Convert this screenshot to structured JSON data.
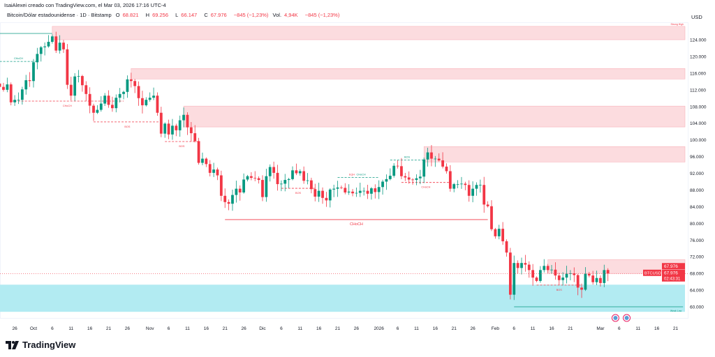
{
  "header": {
    "credit": "IsaiAlexei creado con TradingView.com, el Mar 03, 2026 17:16 UTC-4",
    "symbol_desc": "Bitcoin/Dólar estadounidense · 1D · Bitstamp",
    "open_label": "O",
    "open": "68.821",
    "high_label": "H",
    "high": "69.256",
    "low_label": "L",
    "low": "66.147",
    "close_label": "C",
    "close": "67.976",
    "change": "−845 (−1,23%)",
    "vol_label": "Vol.",
    "vol": "4,94K",
    "vol_change": "−845 (−1,23%)"
  },
  "axis": {
    "currency": "USD"
  },
  "price_tags": {
    "last_price": "67.976",
    "symbol": "BTCUSD",
    "price": "67.976",
    "countdown": "02:43:31"
  },
  "logo": {
    "text": "TradingView"
  },
  "colors": {
    "up": "#089981",
    "down": "#f23645",
    "supply_zone": "#fcdcdf",
    "demand_zone": "#b2ebf2",
    "structure_up": "#089981",
    "structure_down": "#f23645"
  },
  "chart_data": {
    "type": "candlestick",
    "title": "Bitcoin/Dólar estadounidense · 1D · Bitstamp",
    "first_date": "2025-09-22",
    "last_candle": {
      "o": 68821,
      "h": 69256,
      "l": 66147,
      "c": 67976
    },
    "closes_k": [
      112.7,
      112.0,
      113.3,
      109.0,
      109.6,
      109.6,
      112.1,
      114.3,
      114.1,
      118.6,
      120.6,
      122.2,
      122.4,
      123.5,
      124.8,
      121.4,
      123.3,
      121.7,
      113.2,
      110.6,
      115.2,
      115.3,
      113.1,
      111.0,
      108.2,
      106.5,
      107.2,
      108.7,
      110.6,
      108.4,
      107.6,
      110.1,
      111.0,
      111.5,
      114.5,
      114.1,
      112.9,
      110.0,
      108.3,
      109.6,
      110.1,
      110.6,
      106.5,
      101.5,
      103.9,
      101.3,
      103.4,
      102.3,
      104.7,
      106.0,
      103.0,
      101.6,
      99.7,
      94.5,
      95.5,
      94.2,
      92.1,
      92.9,
      91.5,
      86.6,
      85.1,
      84.7,
      86.8,
      88.3,
      87.4,
      90.5,
      91.3,
      90.9,
      90.8,
      90.4,
      86.3,
      91.3,
      93.5,
      92.1,
      89.4,
      89.5,
      90.4,
      90.6,
      92.7,
      92.0,
      92.5,
      90.2,
      90.3,
      88.2,
      86.4,
      87.8,
      86.1,
      85.5,
      88.1,
      88.3,
      88.6,
      88.5,
      87.4,
      87.6,
      87.2,
      87.3,
      87.8,
      87.8,
      87.1,
      88.4,
      87.5,
      88.7,
      90.0,
      90.6,
      91.4,
      93.8,
      93.7,
      91.3,
      91.0,
      90.5,
      90.4,
      90.8,
      91.2,
      95.3,
      97.0,
      95.5,
      95.5,
      95.1,
      93.6,
      92.5,
      88.3,
      89.4,
      89.4,
      89.5,
      89.2,
      86.6,
      88.3,
      89.2,
      89.2,
      84.5,
      84.1,
      78.6,
      76.9,
      78.7,
      75.7,
      73.0,
      62.9,
      70.5,
      69.3,
      70.5,
      70.1,
      68.8,
      67.0,
      66.2,
      68.8,
      69.8,
      68.8,
      68.9,
      67.5,
      66.4,
      67.0,
      67.9,
      68.0,
      67.6,
      64.6,
      64.1,
      67.9,
      67.5,
      65.9,
      66.9,
      65.7,
      68.8,
      67.976
    ],
    "ylim": [
      56000,
      128000
    ],
    "y_ticks": [
      "60.000",
      "64.000",
      "68.000",
      "72.000",
      "76.000",
      "80.000",
      "84.000",
      "88.000",
      "92.000",
      "96.000",
      "100.000",
      "104.000",
      "108.000",
      "112.000",
      "116.000",
      "120.000",
      "124.000"
    ],
    "y_tick_values": [
      60000,
      64000,
      68000,
      72000,
      76000,
      80000,
      84000,
      88000,
      92000,
      96000,
      100000,
      104000,
      108000,
      112000,
      116000,
      120000,
      124000
    ],
    "x_ticks": [
      {
        "label": "26",
        "day": 4
      },
      {
        "label": "Oct",
        "day": 9
      },
      {
        "label": "6",
        "day": 14
      },
      {
        "label": "11",
        "day": 19
      },
      {
        "label": "16",
        "day": 24
      },
      {
        "label": "21",
        "day": 29
      },
      {
        "label": "26",
        "day": 34
      },
      {
        "label": "Nov",
        "day": 40
      },
      {
        "label": "6",
        "day": 45
      },
      {
        "label": "11",
        "day": 50
      },
      {
        "label": "16",
        "day": 55
      },
      {
        "label": "21",
        "day": 60
      },
      {
        "label": "26",
        "day": 65
      },
      {
        "label": "Dic",
        "day": 70
      },
      {
        "label": "6",
        "day": 75
      },
      {
        "label": "11",
        "day": 80
      },
      {
        "label": "16",
        "day": 85
      },
      {
        "label": "21",
        "day": 90
      },
      {
        "label": "26",
        "day": 95
      },
      {
        "label": "2026",
        "day": 101
      },
      {
        "label": "6",
        "day": 106
      },
      {
        "label": "11",
        "day": 111
      },
      {
        "label": "16",
        "day": 116
      },
      {
        "label": "21",
        "day": 121
      },
      {
        "label": "26",
        "day": 126
      },
      {
        "label": "Feb",
        "day": 132
      },
      {
        "label": "6",
        "day": 137
      },
      {
        "label": "11",
        "day": 142
      },
      {
        "label": "16",
        "day": 147
      },
      {
        "label": "21",
        "day": 152
      },
      {
        "label": "Mar",
        "day": 160
      },
      {
        "label": "6",
        "day": 165
      },
      {
        "label": "11",
        "day": 170
      },
      {
        "label": "16",
        "day": 175
      },
      {
        "label": "21",
        "day": 180
      }
    ],
    "zones": [
      {
        "kind": "supply",
        "from_day": 14,
        "top": 127200,
        "bottom": 124000,
        "label": "Strong High"
      },
      {
        "kind": "supply",
        "from_day": 35,
        "top": 117100,
        "bottom": 114600
      },
      {
        "kind": "supply",
        "from_day": 49,
        "top": 108100,
        "bottom": 103100
      },
      {
        "kind": "supply",
        "from_day": 113,
        "top": 98400,
        "bottom": 94700
      },
      {
        "kind": "supply",
        "from_day": 146,
        "top": 71300,
        "bottom": 68000
      },
      {
        "kind": "demand",
        "from_day": -2,
        "top": 65300,
        "bottom": 58800
      }
    ],
    "structures": [
      {
        "dir": "up",
        "style": "solid",
        "price": 125500,
        "from_day": -2,
        "to_day": 14,
        "label": ""
      },
      {
        "dir": "up",
        "style": "dashed",
        "price": 118800,
        "from_day": 0,
        "to_day": 10,
        "label": "CHoCH",
        "label_pos": "above"
      },
      {
        "dir": "down",
        "style": "dashed",
        "price": 109300,
        "from_day": 3,
        "to_day": 33,
        "label": "CHoCH",
        "label_pos": "below"
      },
      {
        "dir": "down",
        "style": "dashed",
        "price": 104300,
        "from_day": 25,
        "to_day": 43,
        "label": "BOS",
        "label_pos": "below"
      },
      {
        "dir": "down",
        "style": "dashed",
        "price": 99600,
        "from_day": 44,
        "to_day": 53,
        "label": "BOS",
        "label_pos": "below"
      },
      {
        "dir": "down",
        "style": "solid",
        "price": 80900,
        "from_day": 60,
        "to_day": 130,
        "label": "CHoCH",
        "label_pos": "below"
      },
      {
        "dir": "down",
        "style": "dashed",
        "price": 88400,
        "from_day": 75,
        "to_day": 84,
        "label": "BOS",
        "label_pos": "below"
      },
      {
        "dir": "up",
        "style": "dashed",
        "price": 91000,
        "from_day": 90,
        "to_day": 101,
        "label": "CHoCH",
        "label_pos": "above",
        "extra_label": "EQH"
      },
      {
        "dir": "up",
        "style": "dashed",
        "price": 95200,
        "from_day": 104,
        "to_day": 113,
        "label": "BOS",
        "label_pos": "above"
      },
      {
        "dir": "down",
        "style": "dashed",
        "price": 89800,
        "from_day": 107,
        "to_day": 120,
        "label": "CHoCH",
        "label_pos": "below"
      },
      {
        "dir": "down",
        "style": "dashed",
        "price": 65200,
        "from_day": 143,
        "to_day": 155,
        "label": "BOS",
        "label_pos": "below"
      },
      {
        "dir": "up",
        "style": "solid",
        "price": 60000,
        "from_day": 137,
        "to_day": 182,
        "label": "Weak Low",
        "label_pos": "end"
      }
    ]
  }
}
